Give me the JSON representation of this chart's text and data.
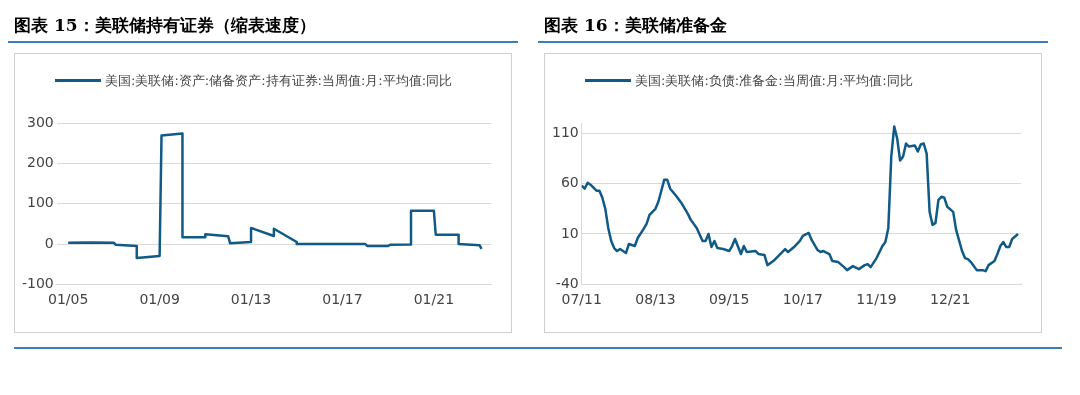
{
  "chart_data": [
    {
      "type": "line",
      "title": "图表 15：美联储持有证券（缩表速度）",
      "legend": "top",
      "grid": "y",
      "xlim": [
        "2004-07",
        "2023-07"
      ],
      "ylim": [
        -100,
        300
      ],
      "yticks": [
        -100,
        0,
        100,
        200,
        300
      ],
      "xticks": [
        {
          "value": "2005-01",
          "label": "01/05"
        },
        {
          "value": "2009-01",
          "label": "01/09"
        },
        {
          "value": "2013-01",
          "label": "01/13"
        },
        {
          "value": "2017-01",
          "label": "01/17"
        },
        {
          "value": "2021-01",
          "label": "01/21"
        }
      ],
      "series": [
        {
          "name": "美国:美联储:资产:储备资产:持有证券:当周值:月:平均值:同比",
          "color": "#0f5a87",
          "x": [
            "2005-01",
            "2006-01",
            "2007-01",
            "2007-02",
            "2008-01",
            "2008-01",
            "2009-01",
            "2009-02",
            "2010-01",
            "2010-01",
            "2011-01",
            "2011-01",
            "2012-01",
            "2012-02",
            "2013-01",
            "2013-01",
            "2014-01",
            "2014-01",
            "2015-01",
            "2015-01",
            "2018-01",
            "2018-02",
            "2019-01",
            "2019-02",
            "2020-01",
            "2020-01",
            "2021-01",
            "2021-02",
            "2022-02",
            "2022-02",
            "2023-01",
            "2023-02"
          ],
          "values": [
            3,
            4,
            3,
            -2,
            -5,
            -35,
            -30,
            270,
            275,
            17,
            17,
            24,
            19,
            2,
            5,
            40,
            20,
            38,
            5,
            0,
            0,
            -5,
            -5,
            -2,
            -1,
            83,
            83,
            23,
            23,
            0,
            -3,
            -12
          ]
        }
      ]
    },
    {
      "type": "line",
      "title": "图表 16：美联储准备金",
      "legend": "top",
      "grid": "y",
      "xlim": [
        "2011-07",
        "2023-12"
      ],
      "ylim": [
        -40,
        120
      ],
      "yticks": [
        -40,
        10,
        60,
        110
      ],
      "xticks": [
        {
          "value": "2011-07",
          "label": "07/11"
        },
        {
          "value": "2013-08",
          "label": "08/13"
        },
        {
          "value": "2015-09",
          "label": "09/15"
        },
        {
          "value": "2017-10",
          "label": "10/17"
        },
        {
          "value": "2019-11",
          "label": "11/19"
        },
        {
          "value": "2021-12",
          "label": "12/21"
        }
      ],
      "series": [
        {
          "name": "美国:美联储:负债:准备金:当周值:月:平均值:同比",
          "color": "#0f5a87",
          "x": [
            "2011-07",
            "2011-08",
            "2011-09",
            "2011-10",
            "2011-12",
            "2012-01",
            "2012-02",
            "2012-03",
            "2012-04",
            "2012-05",
            "2012-06",
            "2012-07",
            "2012-08",
            "2012-09",
            "2012-10",
            "2012-11",
            "2013-01",
            "2013-02",
            "2013-04",
            "2013-05",
            "2013-06",
            "2013-08",
            "2013-09",
            "2013-10",
            "2013-11",
            "2013-12",
            "2014-01",
            "2014-03",
            "2014-05",
            "2014-07",
            "2014-08",
            "2014-10",
            "2014-12",
            "2015-01",
            "2015-02",
            "2015-03",
            "2015-04",
            "2015-05",
            "2015-07",
            "2015-09",
            "2015-10",
            "2015-11",
            "2016-01",
            "2016-02",
            "2016-03",
            "2016-06",
            "2016-07",
            "2016-09",
            "2016-10",
            "2016-12",
            "2017-02",
            "2017-04",
            "2017-05",
            "2017-07",
            "2017-09",
            "2017-10",
            "2017-12",
            "2018-01",
            "2018-03",
            "2018-04",
            "2018-05",
            "2018-07",
            "2018-08",
            "2018-10",
            "2018-12",
            "2019-01",
            "2019-03",
            "2019-05",
            "2019-07",
            "2019-08",
            "2019-09",
            "2019-11",
            "2020-01",
            "2020-02",
            "2020-03",
            "2020-04",
            "2020-05",
            "2020-06",
            "2020-07",
            "2020-08",
            "2020-09",
            "2020-10",
            "2020-12",
            "2021-01",
            "2021-02",
            "2021-03",
            "2021-04",
            "2021-05",
            "2021-06",
            "2021-07",
            "2021-08",
            "2021-09",
            "2021-10",
            "2021-11",
            "2022-01",
            "2022-02",
            "2022-04",
            "2022-05",
            "2022-06",
            "2022-07",
            "2022-09",
            "2022-11",
            "2022-12",
            "2023-01",
            "2023-03",
            "2023-04",
            "2023-05",
            "2023-06",
            "2023-07",
            "2023-08",
            "2023-09",
            "2023-11"
          ],
          "values": [
            58,
            55,
            61,
            59,
            53,
            53,
            46,
            35,
            16,
            3,
            -4,
            -7,
            -5,
            -7,
            -9,
            0,
            -2,
            6,
            15,
            20,
            29,
            35,
            42,
            53,
            64,
            64,
            55,
            48,
            40,
            30,
            24,
            16,
            3,
            3,
            10,
            -3,
            3,
            -4,
            -5,
            -7,
            -2,
            5,
            -10,
            -2,
            -8,
            -7,
            -10,
            -11,
            -21,
            -17,
            -11,
            -5,
            -8,
            -3,
            3,
            8,
            11,
            4,
            -6,
            -8,
            -7,
            -10,
            -17,
            -18,
            -23,
            -26,
            -22,
            -25,
            -21,
            -20,
            -23,
            -14,
            -2,
            2,
            16,
            87,
            117,
            105,
            83,
            87,
            100,
            97,
            98,
            92,
            99,
            100,
            90,
            32,
            19,
            21,
            44,
            47,
            46,
            37,
            32,
            14,
            -7,
            -14,
            -15,
            -18,
            -26,
            -26,
            -27,
            -21,
            -17,
            -10,
            -2,
            2,
            -3,
            -3,
            5,
            10
          ]
        }
      ]
    }
  ]
}
